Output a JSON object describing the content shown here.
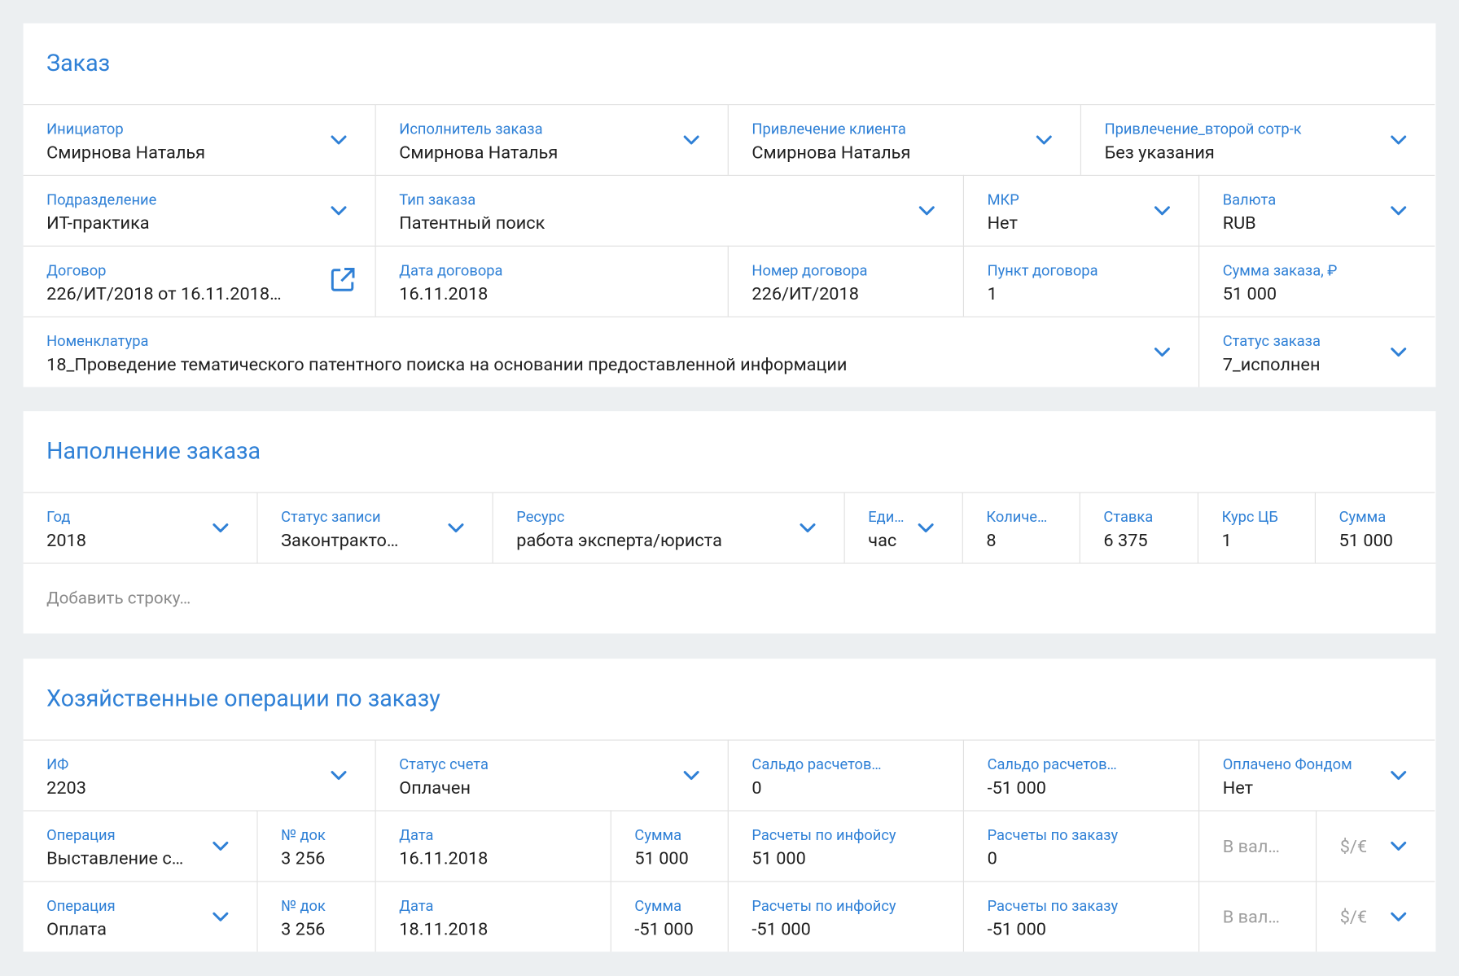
{
  "sections": [
    {
      "title": "Заказ",
      "rows": [
        [
          {
            "label": "Инициатор",
            "value": "Смирнова Наталья"
          },
          {
            "label": "Исполнитель заказа",
            "value": "Смирнова Наталья"
          },
          {
            "label": "Привлечение клиента",
            "value": "Смирнова Наталья"
          },
          {
            "label": "Привлечение_второй сотр-к",
            "value": "Без указания"
          }
        ],
        [
          {
            "label": "Подразделение",
            "value": "ИТ-практика"
          },
          {
            "label": "Тип заказа",
            "value": "Патентный поиск"
          },
          {
            "label": "МКР",
            "value": "Нет"
          },
          {
            "label": "Валюта",
            "value": "RUB"
          }
        ],
        [
          {
            "label": "Договор",
            "value": "226/ИТ/2018 от 16.11.2018…"
          },
          {
            "label": "Дата договора",
            "value": "16.11.2018"
          },
          {
            "label": "Номер договора",
            "value": "226/ИТ/2018"
          },
          {
            "label": "Пункт договора",
            "value": "1"
          },
          {
            "label": "Сумма заказа, ₽",
            "value": "51 000"
          }
        ],
        [
          {
            "label": "Номенклатура",
            "value": "18_Проведение тематического патентного поиска на основании предоставленной информации"
          },
          {
            "label": "Статус заказа",
            "value": "7_исполнен"
          }
        ]
      ]
    },
    {
      "title": "Наполнение заказа",
      "rows": [
        [
          {
            "label": "Год",
            "value": "2018"
          },
          {
            "label": "Статус записи",
            "value": "Законтракто…"
          },
          {
            "label": "Ресурс",
            "value": "работа эксперта/юриста"
          },
          {
            "label": "Еди…",
            "value": "час"
          },
          {
            "label": "Количе…",
            "value": "8"
          },
          {
            "label": "Ставка",
            "value": "6 375"
          },
          {
            "label": "Курс ЦБ",
            "value": "1"
          },
          {
            "label": "Сумма",
            "value": "51 000"
          }
        ]
      ],
      "add_row": "Добавить строку…"
    },
    {
      "title": "Хозяйственные операции по заказу",
      "rows": [
        [
          {
            "label": "ИФ",
            "value": "2203"
          },
          {
            "label": "Статус счета",
            "value": "Оплачен"
          },
          {
            "label": "Сальдо расчетов…",
            "value": "0"
          },
          {
            "label": "Сальдо расчетов…",
            "value": "-51 000"
          },
          {
            "label": "Оплачено Фондом",
            "value": "Нет"
          }
        ],
        [
          {
            "label": "Операция",
            "value": "Выставление с…"
          },
          {
            "label": "№ док",
            "value": "3 256"
          },
          {
            "label": "Дата",
            "value": "16.11.2018"
          },
          {
            "label": "Сумма",
            "value": "51 000"
          },
          {
            "label": "Расчеты по инфойсу",
            "value": "51 000"
          },
          {
            "label": "Расчеты по заказу",
            "value": "0"
          },
          {
            "placeholder": "В вал…"
          },
          {
            "placeholder": "$/€"
          }
        ],
        [
          {
            "label": "Операция",
            "value": "Оплата"
          },
          {
            "label": "№ док",
            "value": "3 256"
          },
          {
            "label": "Дата",
            "value": "18.11.2018"
          },
          {
            "label": "Сумма",
            "value": "-51 000"
          },
          {
            "label": "Расчеты по инфойсу",
            "value": "-51 000"
          },
          {
            "label": "Расчеты по заказу",
            "value": "-51 000"
          },
          {
            "placeholder": "В вал…"
          },
          {
            "placeholder": "$/€"
          }
        ]
      ]
    }
  ]
}
